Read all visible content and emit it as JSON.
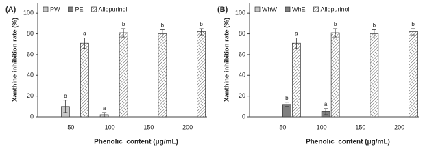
{
  "chart_data": [
    {
      "type": "bar",
      "label": "(A)",
      "ylabel": "Xanthine inhibition rate (%)",
      "xlabel": "Phenolic  content (μg/mL)",
      "categories": [
        "50",
        "100",
        "150",
        "200"
      ],
      "series": [
        {
          "name": "PW",
          "color": "#c8c8c8",
          "values": [
            10,
            2,
            null,
            null
          ],
          "errors": [
            6,
            2,
            null,
            null
          ],
          "letters": [
            "b",
            "a",
            null,
            null
          ]
        },
        {
          "name": "PE",
          "color": "#7f7f7f",
          "values": [
            null,
            null,
            null,
            null
          ],
          "errors": [
            null,
            null,
            null,
            null
          ],
          "letters": [
            null,
            null,
            null,
            null
          ]
        },
        {
          "name": "Allopurinol",
          "color": "#ffffff",
          "hatch": true,
          "values": [
            71,
            81,
            80,
            82
          ],
          "errors": [
            5,
            4,
            4,
            3
          ],
          "letters": [
            "a",
            "b",
            "b",
            "b"
          ]
        }
      ],
      "ylim": [
        0,
        110
      ],
      "yticks": [
        0,
        20,
        40,
        60,
        80,
        100
      ]
    },
    {
      "type": "bar",
      "label": "(B)",
      "ylabel": "Xanthine inhibition rate (%)",
      "xlabel": "Phenolic  content (μg/mL)",
      "categories": [
        "50",
        "100",
        "150",
        "200"
      ],
      "series": [
        {
          "name": "WhW",
          "color": "#c8c8c8",
          "values": [
            null,
            null,
            null,
            null
          ],
          "errors": [
            null,
            null,
            null,
            null
          ],
          "letters": [
            null,
            null,
            null,
            null
          ]
        },
        {
          "name": "WhE",
          "color": "#7f7f7f",
          "values": [
            12,
            5,
            null,
            null
          ],
          "errors": [
            2,
            3,
            null,
            null
          ],
          "letters": [
            "b",
            "a",
            null,
            null
          ]
        },
        {
          "name": "Allopurinol",
          "color": "#ffffff",
          "hatch": true,
          "values": [
            71,
            81,
            80,
            82
          ],
          "errors": [
            5,
            4,
            4,
            3
          ],
          "letters": [
            "a",
            "b",
            "b",
            "b"
          ]
        }
      ],
      "ylim": [
        0,
        110
      ],
      "yticks": [
        0,
        20,
        40,
        60,
        80,
        100
      ]
    }
  ]
}
